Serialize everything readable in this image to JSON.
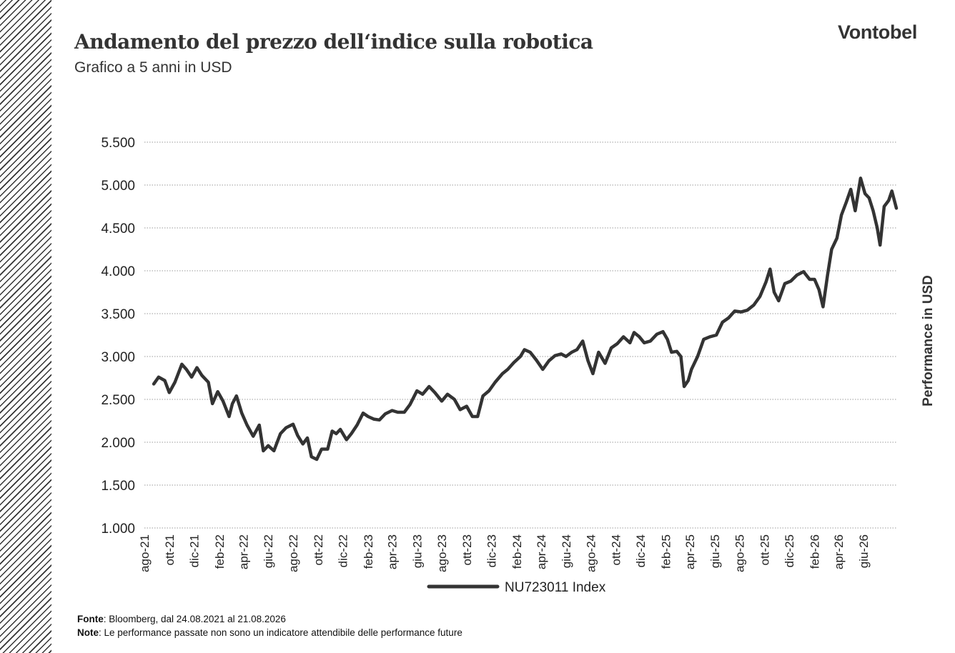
{
  "header": {
    "title": "Andamento del prezzo dell‘indice sulla robotica",
    "subtitle": "Grafico a 5 anni in USD",
    "logo_text": "Vontobel"
  },
  "footer": {
    "source_label": "Fonte",
    "source_text": ": Bloomberg, dal 24.08.2021 al 21.08.2026",
    "note_label": "Note",
    "note_text": ": Le performance passate non sono un indicatore attendibile delle performance future"
  },
  "colors": {
    "line": "#333333",
    "grid": "#9a9a9a",
    "text": "#222222"
  },
  "chart_data": {
    "type": "line",
    "title": "Andamento del prezzo dell‘indice sulla robotica",
    "subtitle": "Grafico a 5 anni in USD",
    "ylabel": "Performance in USD",
    "xlabel": "",
    "ylim": [
      1000,
      5500
    ],
    "y_ticks": [
      1000,
      1500,
      2000,
      2500,
      3000,
      3500,
      4000,
      4500,
      5000,
      5500
    ],
    "y_tick_labels": [
      "1.000",
      "1.500",
      "2.000",
      "2.500",
      "3.000",
      "3.500",
      "4.000",
      "4.500",
      "5.000",
      "5.500"
    ],
    "x_range": [
      "2021-08-24",
      "2026-08-21"
    ],
    "x_ticks": [
      "2021-08-01",
      "2021-10-01",
      "2021-12-01",
      "2022-02-01",
      "2022-04-01",
      "2022-06-01",
      "2022-08-01",
      "2022-10-01",
      "2022-12-01",
      "2023-02-01",
      "2023-04-01",
      "2023-06-01",
      "2023-08-01",
      "2023-10-01",
      "2023-12-01",
      "2024-02-01",
      "2024-04-01",
      "2024-06-01",
      "2024-08-01",
      "2024-10-01",
      "2024-12-01",
      "2025-02-01",
      "2025-04-01",
      "2025-06-01",
      "2025-08-01",
      "2025-10-01",
      "2025-12-01",
      "2026-02-01",
      "2026-04-01",
      "2026-06-01"
    ],
    "x_tick_labels": [
      "ago-21",
      "ott-21",
      "dic-21",
      "feb-22",
      "apr-22",
      "giu-22",
      "ago-22",
      "ott-22",
      "dic-22",
      "feb-23",
      "apr-23",
      "giu-23",
      "ago-23",
      "ott-23",
      "dic-23",
      "feb-24",
      "apr-24",
      "giu-24",
      "ago-24",
      "ott-24",
      "dic-24",
      "feb-25",
      "apr-25",
      "giu-25",
      "ago-25",
      "ott-25",
      "dic-25",
      "feb-26",
      "apr-26",
      "giu-26"
    ],
    "grid": "horizontal dotted",
    "legend_position": "bottom",
    "series": [
      {
        "name": "NU723011 Index",
        "points": [
          [
            "2021-08-24",
            2680
          ],
          [
            "2021-09-05",
            2760
          ],
          [
            "2021-09-20",
            2720
          ],
          [
            "2021-10-01",
            2580
          ],
          [
            "2021-10-15",
            2700
          ],
          [
            "2021-11-01",
            2910
          ],
          [
            "2021-11-12",
            2850
          ],
          [
            "2021-11-25",
            2760
          ],
          [
            "2021-12-08",
            2870
          ],
          [
            "2021-12-20",
            2780
          ],
          [
            "2022-01-05",
            2700
          ],
          [
            "2022-01-15",
            2450
          ],
          [
            "2022-01-28",
            2590
          ],
          [
            "2022-02-10",
            2480
          ],
          [
            "2022-02-25",
            2300
          ],
          [
            "2022-03-05",
            2450
          ],
          [
            "2022-03-15",
            2540
          ],
          [
            "2022-03-28",
            2340
          ],
          [
            "2022-04-10",
            2200
          ],
          [
            "2022-04-25",
            2070
          ],
          [
            "2022-05-10",
            2200
          ],
          [
            "2022-05-20",
            1900
          ],
          [
            "2022-06-01",
            1960
          ],
          [
            "2022-06-15",
            1900
          ],
          [
            "2022-07-01",
            2100
          ],
          [
            "2022-07-15",
            2170
          ],
          [
            "2022-08-01",
            2210
          ],
          [
            "2022-08-12",
            2080
          ],
          [
            "2022-08-25",
            1980
          ],
          [
            "2022-09-05",
            2050
          ],
          [
            "2022-09-15",
            1830
          ],
          [
            "2022-09-28",
            1800
          ],
          [
            "2022-10-10",
            1920
          ],
          [
            "2022-10-25",
            1920
          ],
          [
            "2022-11-05",
            2130
          ],
          [
            "2022-11-15",
            2100
          ],
          [
            "2022-11-25",
            2150
          ],
          [
            "2022-12-10",
            2030
          ],
          [
            "2022-12-22",
            2100
          ],
          [
            "2023-01-05",
            2200
          ],
          [
            "2023-01-20",
            2340
          ],
          [
            "2023-02-01",
            2300
          ],
          [
            "2023-02-15",
            2270
          ],
          [
            "2023-03-01",
            2260
          ],
          [
            "2023-03-15",
            2330
          ],
          [
            "2023-04-01",
            2370
          ],
          [
            "2023-04-15",
            2350
          ],
          [
            "2023-05-01",
            2350
          ],
          [
            "2023-05-15",
            2440
          ],
          [
            "2023-06-01",
            2600
          ],
          [
            "2023-06-15",
            2560
          ],
          [
            "2023-07-01",
            2650
          ],
          [
            "2023-07-15",
            2580
          ],
          [
            "2023-08-01",
            2480
          ],
          [
            "2023-08-15",
            2560
          ],
          [
            "2023-09-01",
            2500
          ],
          [
            "2023-09-15",
            2380
          ],
          [
            "2023-10-01",
            2420
          ],
          [
            "2023-10-15",
            2300
          ],
          [
            "2023-10-28",
            2300
          ],
          [
            "2023-11-10",
            2540
          ],
          [
            "2023-11-25",
            2600
          ],
          [
            "2023-12-10",
            2700
          ],
          [
            "2023-12-28",
            2800
          ],
          [
            "2024-01-10",
            2850
          ],
          [
            "2024-01-25",
            2930
          ],
          [
            "2024-02-10",
            3000
          ],
          [
            "2024-02-20",
            3080
          ],
          [
            "2024-03-05",
            3050
          ],
          [
            "2024-03-20",
            2960
          ],
          [
            "2024-04-05",
            2850
          ],
          [
            "2024-04-20",
            2950
          ],
          [
            "2024-05-05",
            3010
          ],
          [
            "2024-05-20",
            3030
          ],
          [
            "2024-06-01",
            3000
          ],
          [
            "2024-06-15",
            3050
          ],
          [
            "2024-06-28",
            3080
          ],
          [
            "2024-07-12",
            3180
          ],
          [
            "2024-07-25",
            2950
          ],
          [
            "2024-08-06",
            2800
          ],
          [
            "2024-08-20",
            3050
          ],
          [
            "2024-09-05",
            2920
          ],
          [
            "2024-09-20",
            3100
          ],
          [
            "2024-10-05",
            3150
          ],
          [
            "2024-10-20",
            3230
          ],
          [
            "2024-11-05",
            3160
          ],
          [
            "2024-11-15",
            3280
          ],
          [
            "2024-11-28",
            3230
          ],
          [
            "2024-12-10",
            3160
          ],
          [
            "2024-12-25",
            3180
          ],
          [
            "2025-01-10",
            3260
          ],
          [
            "2025-01-25",
            3290
          ],
          [
            "2025-02-05",
            3200
          ],
          [
            "2025-02-15",
            3050
          ],
          [
            "2025-02-28",
            3060
          ],
          [
            "2025-03-10",
            3000
          ],
          [
            "2025-03-18",
            2650
          ],
          [
            "2025-03-28",
            2720
          ],
          [
            "2025-04-05",
            2850
          ],
          [
            "2025-04-20",
            3000
          ],
          [
            "2025-05-05",
            3200
          ],
          [
            "2025-05-20",
            3230
          ],
          [
            "2025-06-05",
            3250
          ],
          [
            "2025-06-20",
            3400
          ],
          [
            "2025-07-05",
            3450
          ],
          [
            "2025-07-20",
            3530
          ],
          [
            "2025-08-05",
            3520
          ],
          [
            "2025-08-20",
            3540
          ],
          [
            "2025-09-05",
            3600
          ],
          [
            "2025-09-20",
            3700
          ],
          [
            "2025-10-05",
            3870
          ],
          [
            "2025-10-15",
            4020
          ],
          [
            "2025-10-25",
            3750
          ],
          [
            "2025-11-05",
            3650
          ],
          [
            "2025-11-20",
            3850
          ],
          [
            "2025-12-05",
            3880
          ],
          [
            "2025-12-20",
            3950
          ],
          [
            "2026-01-05",
            3990
          ],
          [
            "2026-01-20",
            3900
          ],
          [
            "2026-02-01",
            3900
          ],
          [
            "2026-02-12",
            3780
          ],
          [
            "2026-02-22",
            3580
          ],
          [
            "2026-03-05",
            3950
          ],
          [
            "2026-03-15",
            4250
          ],
          [
            "2026-03-28",
            4380
          ],
          [
            "2026-04-08",
            4650
          ],
          [
            "2026-04-20",
            4800
          ],
          [
            "2026-05-01",
            4950
          ],
          [
            "2026-05-12",
            4700
          ],
          [
            "2026-05-25",
            5080
          ],
          [
            "2026-06-05",
            4900
          ],
          [
            "2026-06-15",
            4850
          ],
          [
            "2026-06-25",
            4700
          ],
          [
            "2026-07-05",
            4500
          ],
          [
            "2026-07-12",
            4300
          ],
          [
            "2026-07-22",
            4750
          ],
          [
            "2026-08-02",
            4820
          ],
          [
            "2026-08-10",
            4930
          ],
          [
            "2026-08-21",
            4730
          ]
        ]
      }
    ]
  }
}
